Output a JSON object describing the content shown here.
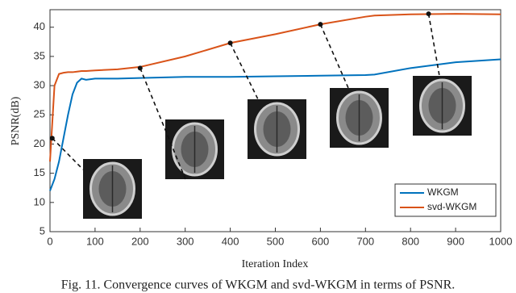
{
  "chart_data": {
    "type": "line",
    "xlabel": "Iteration Index",
    "ylabel": "PSNR(dB)",
    "caption": "Fig. 11. Convergence curves of WKGM and svd-WKGM in terms of PSNR.",
    "x": [
      0,
      10,
      20,
      30,
      40,
      50,
      60,
      70,
      80,
      100,
      150,
      200,
      300,
      400,
      500,
      600,
      700,
      720,
      800,
      900,
      1000
    ],
    "series": [
      {
        "name": "WKGM",
        "color": "#0072bd",
        "values": [
          12,
          14,
          17,
          21,
          25,
          28.5,
          30.5,
          31.2,
          31,
          31.2,
          31.2,
          31.3,
          31.5,
          31.5,
          31.6,
          31.7,
          31.8,
          31.9,
          33,
          34,
          34.5
        ]
      },
      {
        "name": "svd-WKGM",
        "color": "#d95319",
        "values": [
          17,
          30,
          32,
          32.2,
          32.3,
          32.3,
          32.4,
          32.5,
          32.5,
          32.6,
          32.8,
          33.2,
          35,
          37.3,
          38.8,
          40.5,
          41.8,
          42,
          42.2,
          42.3,
          42.2
        ]
      }
    ],
    "annotation_points": {
      "x": [
        5,
        200,
        400,
        600,
        840
      ],
      "y": [
        21,
        33,
        37.3,
        40.5,
        42.3
      ]
    },
    "xlim": [
      0,
      1000
    ],
    "xticks": [
      0,
      100,
      200,
      300,
      400,
      500,
      600,
      700,
      800,
      900,
      1000
    ],
    "ylim": [
      5,
      43
    ],
    "yticks": [
      5,
      10,
      15,
      20,
      25,
      30,
      35,
      40
    ],
    "legend": "lower right"
  }
}
